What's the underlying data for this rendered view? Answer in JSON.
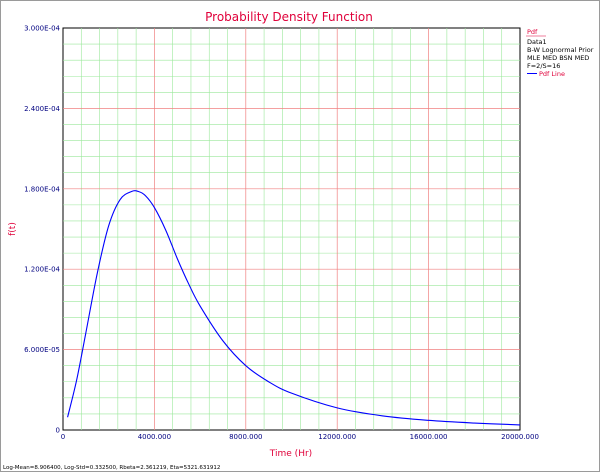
{
  "chart_data": {
    "type": "line",
    "title": "Probability Density Function",
    "xlabel": "Time (Hr)",
    "ylabel": "f(t)",
    "xlim": [
      0,
      20000
    ],
    "ylim": [
      0,
      0.0003
    ],
    "x_ticks": [
      0,
      4000,
      8000,
      12000,
      16000,
      20000
    ],
    "x_tick_labels": [
      "0",
      "4000.000",
      "8000.000",
      "12000.000",
      "16000.000",
      "20000.000"
    ],
    "y_ticks": [
      0,
      6e-05,
      0.00012,
      0.00018,
      0.00024,
      0.0003
    ],
    "y_tick_labels": [
      "0",
      "6.000E-05",
      "1.200E-04",
      "1.800E-04",
      "2.400E-04",
      "3.000E-04"
    ],
    "grid": true,
    "legend_position": "top-right",
    "legend": {
      "header": "Pdf",
      "lines": [
        "Data1",
        "B-W Lognormal Prior",
        "MLE MED BSN MED",
        "F=2/S=16"
      ],
      "series_label": "Pdf Line"
    },
    "footer": "Log-Mean=8.906400, Log-Std=0.332500, Rbeta=2.361219, Eta=5321.631912",
    "series": [
      {
        "name": "Pdf Line",
        "color": "#0000ff",
        "x": [
          200,
          600,
          1000,
          1500,
          2000,
          2500,
          3000,
          3300,
          3600,
          4000,
          4500,
          5000,
          5500,
          6000,
          7000,
          8000,
          9000,
          10000,
          12000,
          14000,
          16000,
          18000,
          20000
        ],
        "y": [
          9.5e-06,
          3.75e-05,
          7.25e-05,
          0.000117,
          0.0001525,
          0.000172,
          0.000178,
          0.000178,
          0.000175,
          0.000166,
          0.000149,
          0.000128,
          0.000109,
          9.25e-05,
          6.65e-05,
          4.8e-05,
          3.6e-05,
          2.75e-05,
          1.65e-05,
          1.05e-05,
          7.2e-06,
          5.2e-06,
          3.8e-06
        ]
      }
    ]
  }
}
